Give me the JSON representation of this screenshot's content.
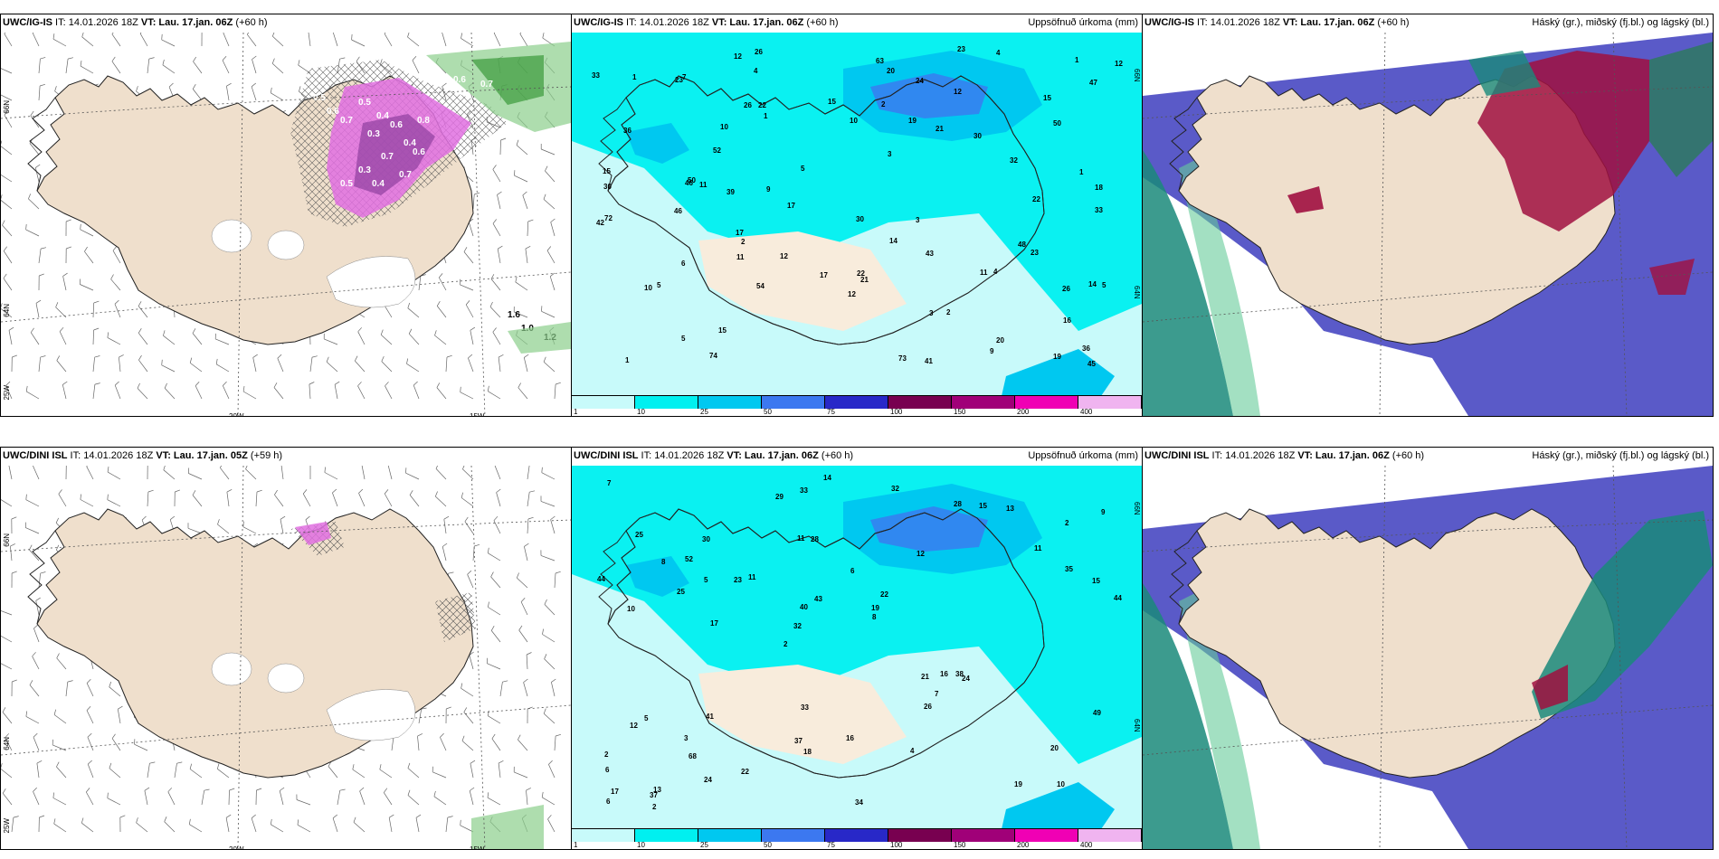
{
  "panels": [
    {
      "id": "p1",
      "title_model": "UWC/IG-IS",
      "title_rest": " IT: 14.01.2026 18Z ",
      "title_vt": "VT: Lau. 17.jan. 06Z",
      "title_lead": " (+60 h)",
      "right_title": "",
      "type": "wind"
    },
    {
      "id": "p2",
      "title_model": "UWC/IG-IS",
      "title_rest": " IT: 14.01.2026 18Z ",
      "title_vt": "VT: Lau. 17.jan. 06Z",
      "title_lead": " (+60 h)",
      "right_title": "Uppsöfnuð úrkoma (mm)",
      "type": "precip"
    },
    {
      "id": "p3",
      "title_model": "UWC/IG-IS",
      "title_rest": " IT: 14.01.2026 18Z ",
      "title_vt": "VT: Lau. 17.jan. 06Z",
      "title_lead": " (+60 h)",
      "right_title": "Háský (gr.), miðský (fj.bl.) og lágský (bl.)",
      "type": "cloud"
    },
    {
      "id": "p4",
      "title_model": "UWC/DINI ISL",
      "title_rest": " IT: 14.01.2026 18Z ",
      "title_vt": "VT: Lau. 17.jan. 05Z",
      "title_lead": " (+59 h)",
      "right_title": "",
      "type": "wind"
    },
    {
      "id": "p5",
      "title_model": "UWC/DINI ISL",
      "title_rest": " IT: 14.01.2026 18Z ",
      "title_vt": "VT: Lau. 17.jan. 06Z",
      "title_lead": " (+60 h)",
      "right_title": "Uppsöfnuð úrkoma (mm)",
      "type": "precip"
    },
    {
      "id": "p6",
      "title_model": "UWC/DINI ISL",
      "title_rest": " IT: 14.01.2026 18Z ",
      "title_vt": "VT: Lau. 17.jan. 06Z",
      "title_lead": " (+60 h)",
      "right_title": "Háský (gr.), miðský (fj.bl.) og lágský (bl.)",
      "type": "cloud"
    }
  ],
  "grid_labels": {
    "lat66": "66N",
    "lat64": "64N",
    "lon20": "20W",
    "lon15": "15W",
    "lon25": "25W"
  },
  "colorbar": {
    "ticks": [
      "1",
      "10",
      "25",
      "50",
      "75",
      "100",
      "150",
      "200",
      "400"
    ],
    "colors": [
      "#c8fafa",
      "#00f0f0",
      "#00c8f0",
      "#3c78f0",
      "#2828c8",
      "#780050",
      "#a00078",
      "#f000b4",
      "#f0b4f0"
    ]
  },
  "precip_values_top": [
    "1",
    "1",
    "21",
    "18",
    "17",
    "14",
    "12",
    "23",
    "26",
    "15",
    "52",
    "23",
    "32",
    "54",
    "10",
    "30",
    "17",
    "15",
    "26",
    "15",
    "36",
    "2",
    "5",
    "6",
    "3",
    "4",
    "1",
    "2",
    "73",
    "47",
    "74",
    "45",
    "46",
    "63",
    "50",
    "30",
    "33",
    "43",
    "50",
    "48",
    "41",
    "36",
    "17",
    "21",
    "16",
    "23",
    "19",
    "30",
    "22",
    "15",
    "19",
    "10",
    "9",
    "12",
    "11",
    "12",
    "10",
    "11",
    "4",
    "3",
    "5",
    "1",
    "5",
    "4",
    "26",
    "7",
    "1",
    "11",
    "12",
    "24",
    "33",
    "72",
    "39",
    "42",
    "20",
    "9",
    "20",
    "22",
    "46",
    "12",
    "14",
    "5",
    "3",
    "2",
    "22"
  ],
  "precip_values_bottom": [
    "10",
    "10",
    "2",
    "2",
    "12",
    "13",
    "11",
    "6",
    "5",
    "11",
    "6",
    "68",
    "28",
    "22",
    "24",
    "25",
    "33",
    "44",
    "21",
    "35",
    "32",
    "37",
    "40",
    "30",
    "28",
    "41",
    "19",
    "20",
    "38",
    "34",
    "23",
    "25",
    "26",
    "24",
    "15",
    "19",
    "17",
    "18",
    "8",
    "12",
    "11",
    "9",
    "7",
    "4",
    "3",
    "2",
    "6",
    "16",
    "13",
    "14",
    "17",
    "44",
    "52",
    "15",
    "37",
    "32",
    "29",
    "43",
    "49",
    "33",
    "22",
    "16",
    "5",
    "2",
    "7",
    "8"
  ],
  "wind_labels": [
    "0.5",
    "0.6",
    "0.7",
    "0.5",
    "0.4",
    "0.3",
    "0.6",
    "0.4",
    "0.7",
    "0.3",
    "0.5",
    "0.4",
    "0.7",
    "0.6",
    "0.8",
    "0.6",
    "0.7",
    "1.6",
    "1.0",
    "1.2"
  ],
  "colors": {
    "land": "#efdfcc",
    "sea_cyan": "#00f0f0",
    "light_cyan": "#c8fafa",
    "cloud_low": "#5a5ac8",
    "cloud_high": "#1a8a7a",
    "cloud_mid": "#a01040"
  }
}
